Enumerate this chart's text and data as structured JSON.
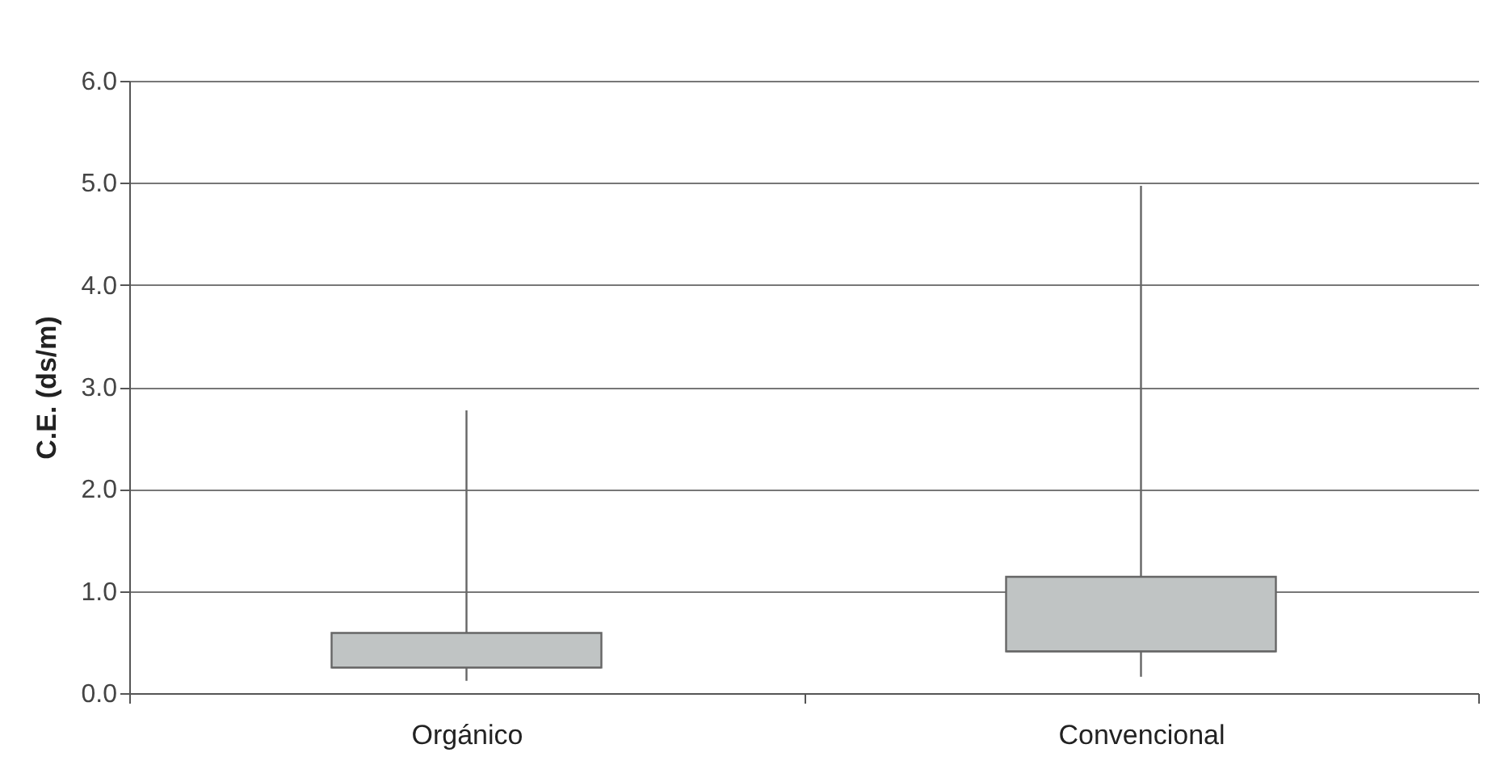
{
  "chart_data": {
    "type": "box",
    "ylabel": "C.E. (ds/m)",
    "categories": [
      "Orgánico",
      "Convencional"
    ],
    "boxes": [
      {
        "low": 0.12,
        "q1": 0.25,
        "median": 0.25,
        "q3": 0.59,
        "high": 2.77
      },
      {
        "low": 0.16,
        "q1": 0.41,
        "median": 0.41,
        "q3": 1.14,
        "high": 4.97
      }
    ],
    "color": "#c0c4c4",
    "ylim": [
      0,
      6
    ],
    "yticks": [
      {
        "value": 0,
        "label": "0.0"
      },
      {
        "value": 1,
        "label": "1.0"
      },
      {
        "value": 2,
        "label": "2.0"
      },
      {
        "value": 3,
        "label": "3.0"
      },
      {
        "value": 4,
        "label": "4.0"
      },
      {
        "value": 5,
        "label": "5.0"
      },
      {
        "value": 6,
        "label": "6.0"
      }
    ],
    "grid": "y"
  }
}
